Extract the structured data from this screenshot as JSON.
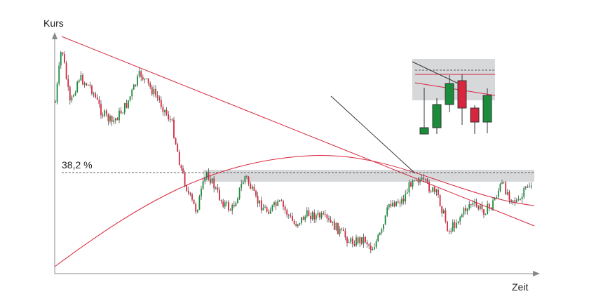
{
  "y_axis_label": "Kurs",
  "x_axis_label": "Zeit",
  "level_label": "38,2 %"
}
